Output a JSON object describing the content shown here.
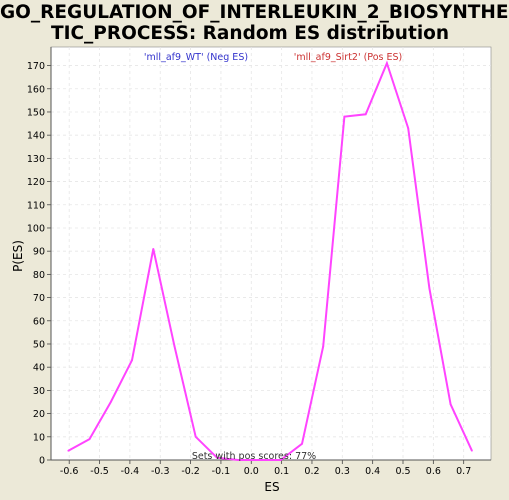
{
  "title": {
    "line1": "GO_REGULATION_OF_INTERLEUKIN_2_BIOSYNTHE",
    "line2": "TIC_PROCESS: Random ES distribution"
  },
  "colors": {
    "background": "#ece9d8",
    "plot_background": "#ffffff",
    "line": "#ff44ff",
    "neg_label": "#3333cc",
    "pos_label": "#cc3333",
    "grid": "#e6e6e6"
  },
  "chart_data": {
    "type": "line",
    "xlabel": "ES",
    "ylabel": "P(ES)",
    "xlim": [
      -0.66,
      0.79
    ],
    "ylim": [
      0,
      178
    ],
    "xticks": [
      -0.6,
      -0.5,
      -0.4,
      -0.3,
      -0.2,
      -0.1,
      0.0,
      0.1,
      0.2,
      0.3,
      0.4,
      0.5,
      0.6,
      0.7
    ],
    "xtick_labels": [
      "-0.6",
      "-0.5",
      "-0.4",
      "-0.3",
      "-0.2",
      "-0.1",
      "0.0",
      "0.1",
      "0.2",
      "0.3",
      "0.4",
      "0.5",
      "0.6",
      "0.7"
    ],
    "yticks": [
      0,
      10,
      20,
      30,
      40,
      50,
      60,
      70,
      80,
      90,
      100,
      110,
      120,
      130,
      140,
      150,
      160,
      170
    ],
    "grid": true,
    "series": [
      {
        "x": [
          -0.603,
          -0.533,
          -0.463,
          -0.393,
          -0.323,
          -0.253,
          -0.183,
          -0.113,
          -0.043,
          0.027,
          0.097,
          0.167,
          0.237,
          0.307,
          0.377,
          0.447,
          0.517,
          0.587,
          0.657,
          0.727
        ],
        "y": [
          4,
          9,
          25,
          43,
          91,
          49,
          10,
          1,
          0,
          0,
          0,
          7,
          49,
          148,
          149,
          171,
          143,
          74,
          24,
          4
        ]
      }
    ],
    "annotations": {
      "neg_label": "'mll_af9_WT' (Neg ES)",
      "pos_label": "'mll_af9_Sirt2' (Pos ES)",
      "footer": "Sets with pos scores: 77%"
    }
  }
}
